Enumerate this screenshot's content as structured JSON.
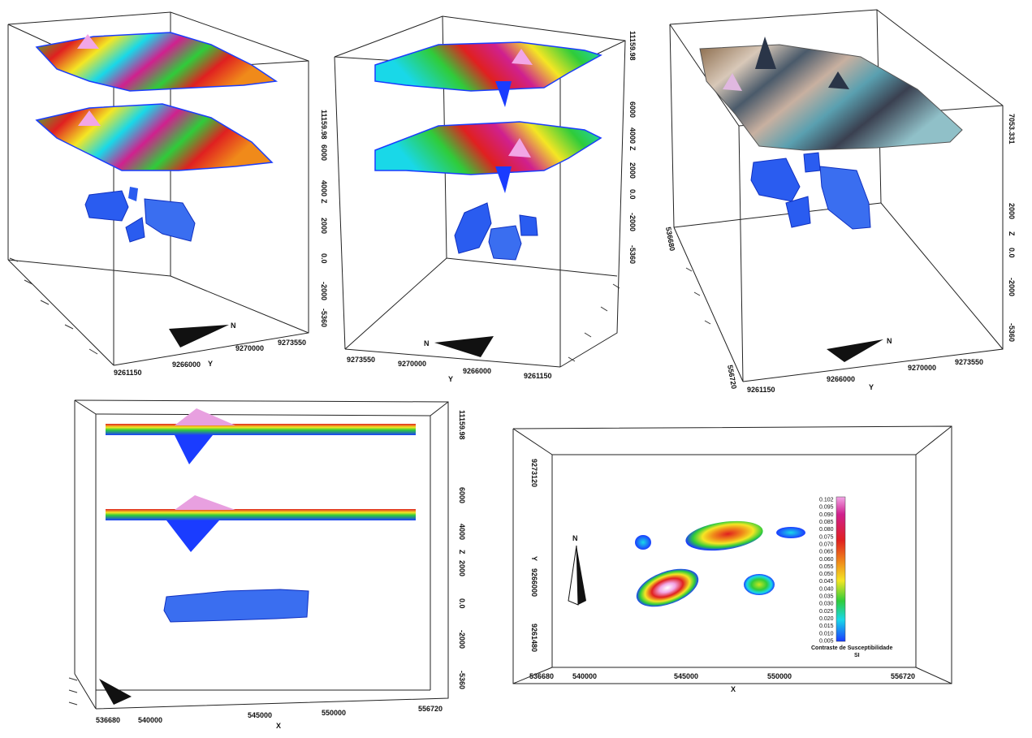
{
  "panels": [
    {
      "id": "panel-1",
      "y_ticks": [
        "9261150",
        "9266000",
        "9270000",
        "9273550"
      ],
      "y_label": "Y",
      "z_ticks": [
        "11159.98",
        "6000",
        "4000",
        "2000",
        "0.0",
        "-2000",
        "-5360"
      ],
      "z_label": "Z",
      "north_label": "N"
    },
    {
      "id": "panel-2",
      "y_ticks": [
        "9273550",
        "9270000",
        "9266000",
        "9261150"
      ],
      "y_label": "Y",
      "z_ticks": [
        "11159.98",
        "6000",
        "4000",
        "2000",
        "0.0",
        "-2000",
        "-5360"
      ],
      "z_label": "Z",
      "north_label": "N"
    },
    {
      "id": "panel-3",
      "y_ticks": [
        "9261150",
        "9266000",
        "9270000",
        "9273550"
      ],
      "y_label": "Y",
      "x_ticks": [
        "556720",
        "536680"
      ],
      "z_ticks": [
        "7053.331",
        "2000",
        "0.0",
        "-2000",
        "-5360"
      ],
      "z_label": "Z",
      "north_label": "N"
    },
    {
      "id": "panel-4",
      "x_ticks": [
        "536680",
        "540000",
        "545000",
        "550000",
        "556720"
      ],
      "x_label": "X",
      "z_ticks": [
        "11159.98",
        "6000",
        "4000",
        "2000",
        "0.0",
        "-2000",
        "-5360"
      ],
      "z_label": "Z"
    },
    {
      "id": "panel-5",
      "x_ticks": [
        "536680",
        "540000",
        "545000",
        "550000",
        "556720"
      ],
      "x_label": "X",
      "y_ticks": [
        "9273120",
        "9266000",
        "9261480"
      ],
      "y_label": "Y",
      "north_label": "N",
      "colorbar": {
        "ticks": [
          "0.102",
          "0.095",
          "0.090",
          "0.085",
          "0.080",
          "0.075",
          "0.070",
          "0.065",
          "0.060",
          "0.055",
          "0.050",
          "0.045",
          "0.040",
          "0.035",
          "0.030",
          "0.025",
          "0.020",
          "0.015",
          "0.010",
          "0.005"
        ],
        "title_line1": "Contraste de Susceptibilidade",
        "title_line2": "SI"
      }
    }
  ],
  "colors": {
    "low": "#1a3cff",
    "cyan": "#19d8e8",
    "green": "#2fcc3a",
    "yellow": "#f4e624",
    "orange": "#f08a1a",
    "red": "#e02020",
    "magenta": "#d0208e",
    "pink": "#f2a6e6"
  }
}
